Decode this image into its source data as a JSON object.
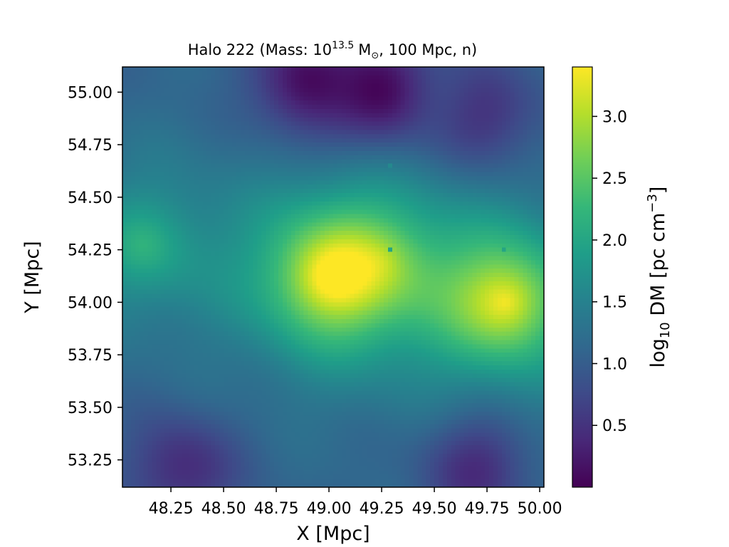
{
  "chart_data": {
    "type": "heatmap",
    "title": {
      "prefix": "Halo 222 (Mass: 10",
      "exponent": "13.5",
      "unit_base": "M",
      "unit_sub": "⊙",
      "suffix": ", 100 Mpc, n)"
    },
    "xlabel": "X [Mpc]",
    "ylabel": "Y [Mpc]",
    "xlim": [
      48.02,
      50.02
    ],
    "ylim": [
      53.12,
      55.12
    ],
    "x_ticks": [
      48.25,
      48.5,
      48.75,
      49.0,
      49.25,
      49.5,
      49.75,
      50.0
    ],
    "x_tick_labels": [
      "48.25",
      "48.50",
      "48.75",
      "49.00",
      "49.25",
      "49.50",
      "49.75",
      "50.00"
    ],
    "y_ticks": [
      53.25,
      53.5,
      53.75,
      54.0,
      54.25,
      54.5,
      54.75,
      55.0
    ],
    "y_tick_labels": [
      "53.25",
      "53.50",
      "53.75",
      "54.00",
      "54.25",
      "54.50",
      "54.75",
      "55.00"
    ],
    "colormap": "viridis",
    "color_range": [
      0.0,
      3.4
    ],
    "colorbar": {
      "label_parts": {
        "pre": "log",
        "sub": "10",
        "mid": " DM [pc cm",
        "sup": "−3",
        "post": "]"
      },
      "ticks": [
        0.5,
        1.0,
        1.5,
        2.0,
        2.5,
        3.0
      ],
      "tick_labels": [
        "0.5",
        "1.0",
        "1.5",
        "2.0",
        "2.5",
        "3.0"
      ]
    },
    "field": {
      "grid_n": 100,
      "background_log10_dm": 1.1,
      "peaks": [
        {
          "x": 49.01,
          "y": 54.12,
          "value": 3.35
        },
        {
          "x": 49.84,
          "y": 54.0,
          "value": 3.3
        },
        {
          "x": 48.12,
          "y": 54.27,
          "value": 2.1
        },
        {
          "x": 49.26,
          "y": 54.2,
          "value": 1.9
        }
      ],
      "dark_regions": [
        {
          "x": 48.9,
          "y": 55.05,
          "value": 0.1
        },
        {
          "x": 49.25,
          "y": 55.02,
          "value": 0.05
        },
        {
          "x": 48.3,
          "y": 53.2,
          "value": 0.4
        },
        {
          "x": 49.7,
          "y": 53.2,
          "value": 0.45
        },
        {
          "x": 49.75,
          "y": 54.9,
          "value": 0.5
        }
      ],
      "point_sources": [
        {
          "x": 49.29,
          "y": 54.65,
          "value": 1.6
        },
        {
          "x": 49.29,
          "y": 54.25,
          "value": 2.0
        },
        {
          "x": 49.83,
          "y": 54.25,
          "value": 2.0
        },
        {
          "x": 48.1,
          "y": 54.51,
          "value": 1.6
        }
      ]
    }
  }
}
